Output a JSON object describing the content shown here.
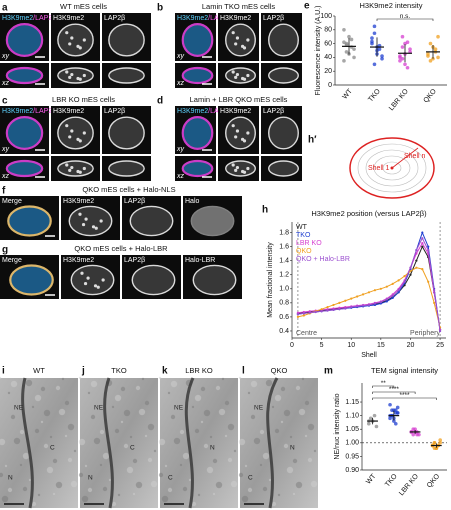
{
  "panels": [
    {
      "letter": "a",
      "title": "WT mES cells",
      "channels": [
        [
          "H3K9me2",
          "/LAP2β"
        ],
        "H3K9me2",
        "LAP2β"
      ],
      "rows": [
        "xy",
        "xz"
      ]
    },
    {
      "letter": "b",
      "title": "Lamin TKO mES cells",
      "channels": [
        [
          "H3K9me2",
          "/LAP2β"
        ],
        "H3K9me2",
        "LAP2β"
      ],
      "rows": [
        "xy",
        "xz"
      ]
    },
    {
      "letter": "c",
      "title": "LBR KO mES cells",
      "channels": [
        [
          "H3K9me2",
          "/LAP2β"
        ],
        "H3K9me2",
        "LAP2β"
      ],
      "rows": [
        "xy",
        "xz"
      ]
    },
    {
      "letter": "d",
      "title": "Lamin + LBR QKO mES cells",
      "channels": [
        [
          "H3K9me2",
          "/LAP2β"
        ],
        "H3K9me2",
        "LAP2β"
      ],
      "rows": [
        "xy",
        "xz"
      ]
    },
    {
      "letter": "f",
      "title": "QKO mES cells + Halo-NLS",
      "channels": [
        "Merge",
        "H3K9me2",
        "LAP2β",
        "Halo"
      ]
    },
    {
      "letter": "g",
      "title": "QKO mES cells + Halo-LBR",
      "channels": [
        "Merge",
        "H3K9me2",
        "LAP2β",
        "Halo-LBR"
      ]
    }
  ],
  "h_prime": {
    "letter": "h′",
    "labels": [
      "Shell n",
      "Shell 1"
    ]
  },
  "em_panels": [
    {
      "letter": "i",
      "title": "WT",
      "labels": [
        "NE",
        "C",
        "N"
      ]
    },
    {
      "letter": "j",
      "title": "TKO",
      "labels": [
        "NE",
        "C",
        "N"
      ]
    },
    {
      "letter": "k",
      "title": "LBR KO",
      "labels": [
        "NE",
        "N",
        "C"
      ]
    },
    {
      "letter": "l",
      "title": "QKO",
      "labels": [
        "NE",
        "N",
        "C"
      ]
    }
  ],
  "chart_data": [
    {
      "type": "strip",
      "panel_letter": "e",
      "title": "H3K9me2 intensity",
      "y_label": "Fluorescence intensity (A.U.)",
      "categories": [
        "WT",
        "TKO",
        "LBR KO",
        "QKO"
      ],
      "colors": [
        "#8a8a8a",
        "#1f3fd0",
        "#d63fd0",
        "#f0a020"
      ],
      "points": [
        [
          62,
          48,
          70,
          55,
          40,
          80,
          58,
          45,
          66,
          52,
          35,
          60
        ],
        [
          60,
          75,
          45,
          52,
          38,
          68,
          85,
          50,
          57,
          42,
          63,
          30,
          55
        ],
        [
          40,
          55,
          30,
          62,
          48,
          35,
          70,
          45,
          25,
          52,
          42,
          38,
          60
        ],
        [
          45,
          60,
          38,
          52,
          70,
          42,
          35,
          55,
          48,
          40
        ]
      ],
      "means": [
        56,
        55,
        46,
        48
      ],
      "sd": [
        12,
        14,
        13,
        10
      ],
      "annotations": [
        "n.s."
      ],
      "ylim": [
        0,
        100
      ],
      "yticks": [
        0,
        20,
        40,
        60,
        80,
        100
      ]
    },
    {
      "type": "line",
      "panel_letter": "h",
      "title": "H3K9me2 position (versus LAP2β)",
      "x_label": "Shell",
      "y_label": "Mean fractional intensity",
      "x": [
        1,
        2,
        3,
        4,
        5,
        6,
        7,
        8,
        9,
        10,
        11,
        12,
        13,
        14,
        15,
        16,
        17,
        18,
        19,
        20,
        21,
        22,
        23,
        24,
        25
      ],
      "series": [
        {
          "name": "WT",
          "color": "#222222",
          "values": [
            0.65,
            0.66,
            0.67,
            0.68,
            0.69,
            0.7,
            0.71,
            0.72,
            0.73,
            0.74,
            0.75,
            0.76,
            0.77,
            0.78,
            0.8,
            0.83,
            0.88,
            0.95,
            1.05,
            1.2,
            1.4,
            1.6,
            1.45,
            0.95,
            0.42
          ]
        },
        {
          "name": "TKO",
          "color": "#1f3fd0",
          "values": [
            0.64,
            0.65,
            0.66,
            0.67,
            0.68,
            0.69,
            0.7,
            0.71,
            0.72,
            0.73,
            0.74,
            0.75,
            0.76,
            0.77,
            0.79,
            0.82,
            0.87,
            0.95,
            1.08,
            1.28,
            1.55,
            1.8,
            1.6,
            1.0,
            0.4
          ]
        },
        {
          "name": "LBR KO",
          "color": "#d63fd0",
          "values": [
            0.66,
            0.67,
            0.68,
            0.69,
            0.7,
            0.71,
            0.72,
            0.73,
            0.74,
            0.75,
            0.76,
            0.77,
            0.78,
            0.8,
            0.82,
            0.86,
            0.92,
            1.0,
            1.12,
            1.3,
            1.5,
            1.65,
            1.5,
            0.95,
            0.42
          ]
        },
        {
          "name": "QKO",
          "color": "#f0a020",
          "values": [
            0.6,
            0.62,
            0.65,
            0.68,
            0.71,
            0.74,
            0.77,
            0.8,
            0.83,
            0.86,
            0.89,
            0.92,
            0.95,
            0.98,
            1.0,
            1.03,
            1.07,
            1.12,
            1.18,
            1.25,
            1.3,
            1.28,
            1.1,
            0.8,
            0.45
          ]
        },
        {
          "name": "QKO + Halo-LBR",
          "color": "#9b4fd0",
          "values": [
            0.64,
            0.65,
            0.66,
            0.67,
            0.68,
            0.69,
            0.7,
            0.71,
            0.72,
            0.74,
            0.75,
            0.76,
            0.77,
            0.79,
            0.81,
            0.85,
            0.9,
            0.98,
            1.1,
            1.3,
            1.55,
            1.72,
            1.55,
            0.98,
            0.4
          ]
        }
      ],
      "vlines": [
        1,
        25
      ],
      "annotations": [
        "Centre",
        "Periphery"
      ],
      "xlim": [
        0,
        26
      ],
      "xticks": [
        0,
        5,
        10,
        15,
        20,
        25
      ],
      "ylim": [
        0.3,
        1.95
      ],
      "yticks": [
        0.4,
        0.6,
        0.8,
        {
          "value": 1,
          "label": "1.0"
        },
        1.2,
        1.4,
        1.6,
        1.8
      ],
      "legend": "top-left"
    },
    {
      "type": "strip",
      "panel_letter": "m",
      "title": "TEM signal intensity",
      "y_label": "NE/nuc intensity ratio",
      "categories": [
        "WT",
        "TKO",
        "LBR KO",
        "QKO"
      ],
      "colors": [
        "#8a8a8a",
        "#1f3fd0",
        "#d63fd0",
        "#f0a020"
      ],
      "points": [
        [
          1.07,
          1.09,
          1.08,
          1.1,
          1.06,
          1.08
        ],
        [
          1.1,
          1.12,
          1.08,
          1.11,
          1.13,
          1.09,
          1.1,
          1.12,
          1.07,
          1.11,
          1.14,
          1.1,
          1.09,
          1.12,
          1.11
        ],
        [
          1.04,
          1.03,
          1.05,
          1.04,
          1.03,
          1.04,
          1.05,
          1.04,
          1.03
        ],
        [
          0.99,
          1.0,
          0.98,
          0.99,
          1.01,
          0.99,
          1.0,
          0.98,
          0.99,
          1.0,
          0.99,
          0.98
        ]
      ],
      "means": [
        1.08,
        1.1,
        1.04,
        0.99
      ],
      "sd": [
        0.012,
        0.018,
        0.007,
        0.008
      ],
      "reference_line": 1,
      "annotations": [
        "**",
        "****",
        "****"
      ],
      "ylim": [
        0.9,
        1.22
      ],
      "yticks": [
        {
          "value": 0.9,
          "label": "0.90"
        },
        0.95,
        {
          "value": 1,
          "label": "1.00"
        },
        1.05,
        {
          "value": 1.1,
          "label": "1.10"
        },
        1.15
      ]
    }
  ]
}
